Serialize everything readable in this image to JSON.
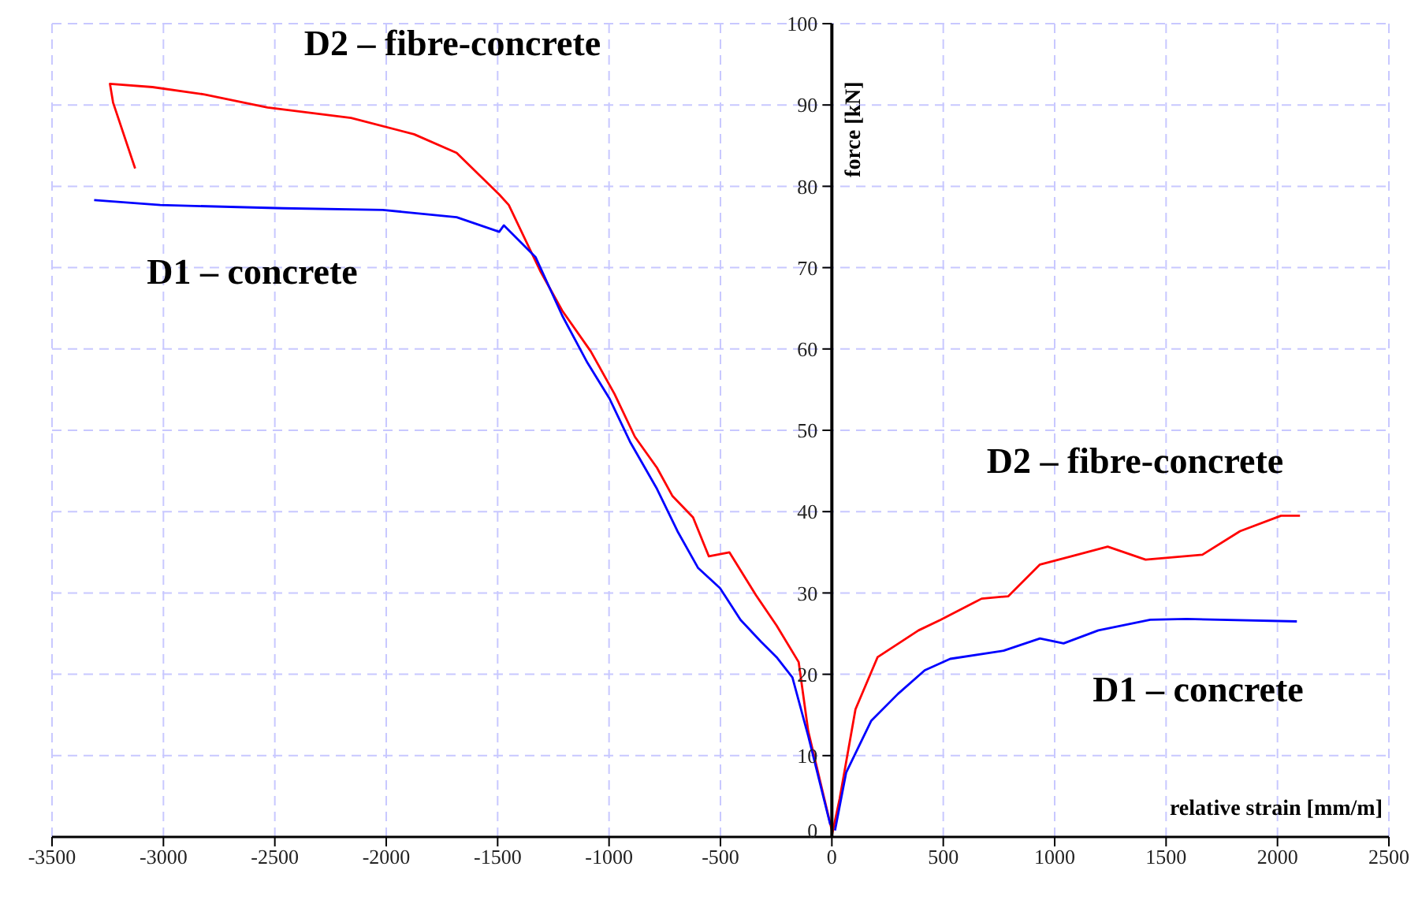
{
  "chart_data": {
    "type": "line",
    "xlabel": "relative strain [mm/m]",
    "ylabel": "force [kN]",
    "xlim": [
      -3500,
      2500
    ],
    "xticks": [
      -3500,
      -3000,
      -2500,
      -2000,
      -1500,
      -1000,
      -500,
      0,
      500,
      1000,
      1500,
      2000,
      2500
    ],
    "ylim": [
      0,
      100
    ],
    "yticks": [
      0,
      10,
      20,
      30,
      40,
      50,
      60,
      70,
      80,
      90,
      100
    ],
    "grid": true,
    "series": [
      {
        "name": "D2 – fibre-concrete",
        "color": "#ff0000",
        "x": [
          0,
          -106,
          -149,
          -248,
          -340,
          -460,
          -552,
          -623,
          -715,
          -785,
          -884,
          -976,
          -1082,
          -1210,
          -1309,
          -1450,
          -1493,
          -1684,
          -1875,
          -2158,
          -2533,
          -2816,
          -3049,
          -3240,
          -3226,
          -3127
        ],
        "values": [
          0.8,
          13,
          21.5,
          26,
          29.7,
          35,
          34.5,
          39.3,
          41.9,
          45.4,
          49.2,
          54.5,
          59.7,
          64.7,
          69.6,
          77.7,
          79,
          84.1,
          86.4,
          88.4,
          89.7,
          91.3,
          92.2,
          92.6,
          90.3,
          82.2
        ]
      },
      {
        "name": "D1 – concrete",
        "color": "#0000ff",
        "x": [
          -7,
          -106,
          -177,
          -248,
          -318,
          -410,
          -502,
          -601,
          -693,
          -785,
          -906,
          -998,
          -1097,
          -1210,
          -1330,
          -1472,
          -1493,
          -1684,
          -2016,
          -2462,
          -3014,
          -3311
        ],
        "values": [
          1.5,
          12.4,
          19.6,
          22.1,
          24,
          26.7,
          30.6,
          33.1,
          37.6,
          42.8,
          48.6,
          53.9,
          58.3,
          64.1,
          71.3,
          75.2,
          74.4,
          76.2,
          77.1,
          77.3,
          77.7,
          78.3
        ]
      },
      {
        "name": "D2 – fibre-concrete",
        "color": "#ff0000",
        "x": [
          0,
          35,
          106,
          205,
          389,
          488,
          672,
          792,
          934,
          1075,
          1238,
          1408,
          1663,
          1832,
          2016,
          2101
        ],
        "values": [
          0.2,
          4.7,
          15.7,
          22.1,
          25.4,
          26.7,
          29.3,
          29.6,
          33.5,
          34.5,
          35.7,
          34.1,
          34.7,
          37.6,
          39.5,
          39.5
        ]
      },
      {
        "name": "D1 – concrete",
        "color": "#0000ff",
        "x": [
          14,
          64,
          177,
          297,
          417,
          531,
          771,
          934,
          1040,
          1196,
          1429,
          1592,
          2087
        ],
        "values": [
          0.8,
          7.9,
          14.3,
          17.6,
          20.5,
          21.9,
          22.9,
          24.4,
          23.8,
          25.4,
          26.7,
          26.8,
          26.5
        ]
      }
    ]
  }
}
